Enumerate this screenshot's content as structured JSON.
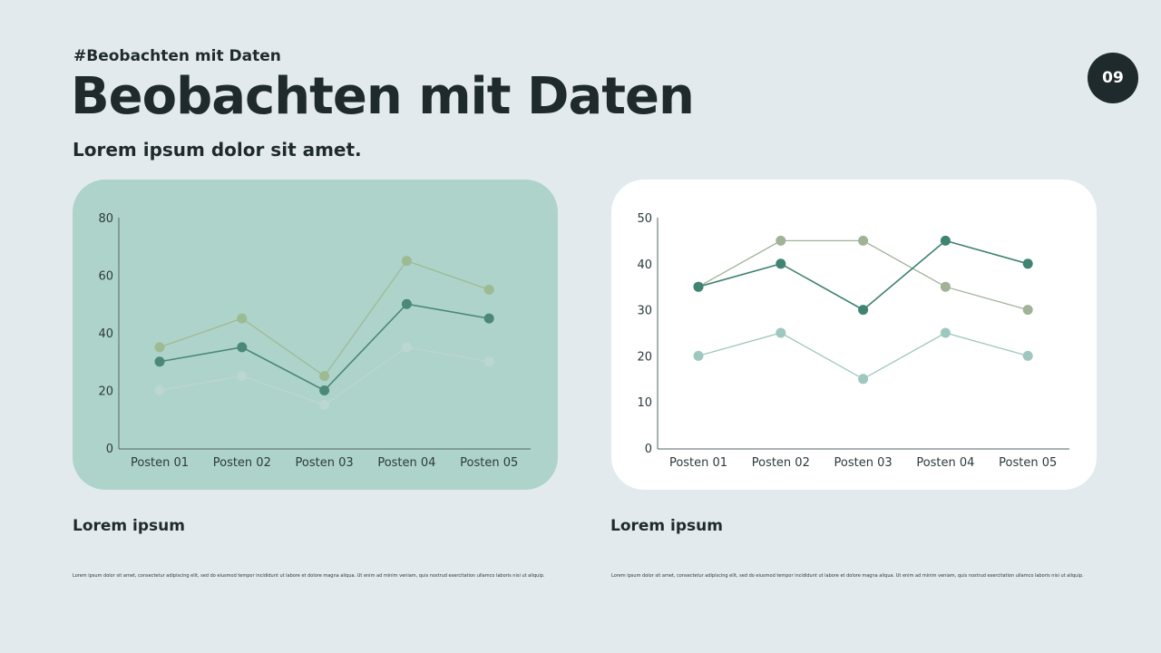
{
  "header": {
    "tag": "#Beobachten mit Daten",
    "title": "Beobachten mit Daten",
    "subtitle": "Lorem ipsum dolor sit amet.",
    "page_number": "09"
  },
  "chart_data": [
    {
      "type": "line",
      "categories": [
        "Posten 01",
        "Posten 02",
        "Posten 03",
        "Posten 04",
        "Posten 05"
      ],
      "ylim": [
        0,
        80
      ],
      "yticks": [
        0,
        20,
        40,
        60,
        80
      ],
      "grid": false,
      "legend": "none",
      "background": "#aed3cb",
      "series": [
        {
          "values": [
            35,
            45,
            25,
            65,
            55
          ],
          "color": "#9dbb92"
        },
        {
          "values": [
            30,
            35,
            20,
            50,
            45
          ],
          "color": "#4a887a"
        },
        {
          "values": [
            20,
            25,
            15,
            35,
            30
          ],
          "color": "#bcd6d1"
        }
      ]
    },
    {
      "type": "line",
      "categories": [
        "Posten 01",
        "Posten 02",
        "Posten 03",
        "Posten 04",
        "Posten 05"
      ],
      "ylim": [
        0,
        50
      ],
      "yticks": [
        0,
        10,
        20,
        30,
        40,
        50
      ],
      "grid": false,
      "legend": "none",
      "background": "#ffffff",
      "series": [
        {
          "values": [
            35,
            45,
            45,
            35,
            30
          ],
          "color": "#a0b396"
        },
        {
          "values": [
            35,
            40,
            30,
            45,
            40
          ],
          "color": "#3f8373"
        },
        {
          "values": [
            20,
            25,
            15,
            25,
            20
          ],
          "color": "#9ec7bf"
        }
      ]
    }
  ],
  "captions": [
    {
      "title": "Lorem ipsum",
      "text": "Lorem ipsum dolor sit amet, consectetur adipiscing elit, sed do eiusmod tempor incididunt ut labore et dolore magna aliqua. Ut enim ad minim veniam, quis nostrud exercitation ullamco laboris nisi ut aliquip."
    },
    {
      "title": "Lorem ipsum",
      "text": "Lorem ipsum dolor sit amet, consectetur adipiscing elit, sed do eiusmod tempor incididunt ut labore et dolore magna aliqua. Ut enim ad minim veniam, quis nostrud exercitation ullamco laboris nisi ut aliquip."
    }
  ]
}
